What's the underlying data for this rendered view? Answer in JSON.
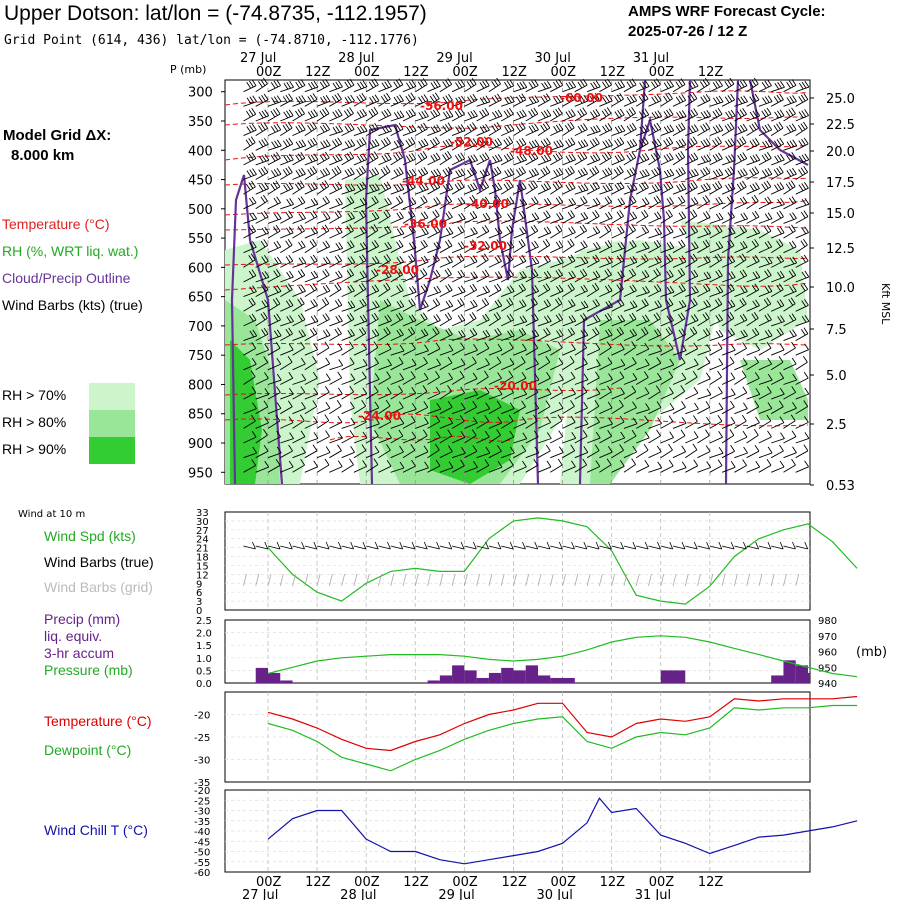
{
  "header": {
    "title": "Upper Dotson:  lat/lon = (-74.8735, -112.1957)",
    "subtitle": "Grid Point (614, 436) lat/lon = (-74.8710, -112.1776)",
    "cycle_line1": "AMPS WRF Forecast Cycle:",
    "cycle_line2": "2025-07-26 / 12  Z"
  },
  "side": {
    "model_grid_line1": "Model Grid ΔX:",
    "model_grid_line2": "8.000 km",
    "legend_temperature": "Temperature (°C)",
    "legend_rh": "RH (%, WRT liq. wat.)",
    "legend_cloud": "Cloud/Precip Outline",
    "legend_wind": "Wind Barbs (kts) (true)",
    "rh70": "RH > 70%",
    "rh80": "RH > 80%",
    "rh90": "RH > 90%",
    "rh_colors": [
      "#ccf5cc",
      "#99e699",
      "#33cc33"
    ]
  },
  "time_axis": {
    "top_day_labels": [
      "27 Jul",
      "28 Jul",
      "29 Jul",
      "30 Jul",
      "31 Jul"
    ],
    "bottom_day_labels": [
      "27 Jul",
      "28 Jul",
      "29 Jul",
      "30 Jul",
      "31 Jul"
    ],
    "hour_labels": [
      "00Z",
      "12Z",
      "00Z",
      "12Z",
      "00Z",
      "12Z",
      "00Z",
      "12Z",
      "00Z",
      "12Z"
    ]
  },
  "chart_data": [
    {
      "type": "heatmap",
      "panel": "sounding",
      "y_axis_title": "P (mb)",
      "right_axis_title": "Kft MSL",
      "pressure_ticks": [
        300,
        350,
        400,
        450,
        500,
        550,
        600,
        650,
        700,
        750,
        800,
        850,
        900,
        950
      ],
      "kft_ticks": [
        "25.0",
        "22.5",
        "20.0",
        "17.5",
        "15.0",
        "12.5",
        "10.0",
        "7.5",
        "5.0",
        "2.5",
        "0.53"
      ],
      "temperature_labels": [
        "-60.00",
        "-56.00",
        "-52.00",
        "-48.00",
        "-44.00",
        "-40.00",
        "-36.00",
        "-32.00",
        "-28.00",
        "-24.00",
        "-20.00"
      ],
      "colors": {
        "temperature": "#ee1111",
        "cloud": "#663399",
        "wind": "#000000"
      }
    },
    {
      "type": "line",
      "panel": "wind_10m",
      "panel_label": "Wind at 10 m",
      "series_label_speed": "Wind Spd (kts)",
      "series_label_barbs_true": "Wind Barbs (true)",
      "series_label_barbs_grid": "Wind Barbs (grid)",
      "y_ticks": [
        0,
        3,
        6,
        9,
        12,
        15,
        18,
        21,
        24,
        27,
        30,
        33
      ],
      "ylim": [
        0,
        33
      ],
      "x_hours": [
        0,
        6,
        12,
        18,
        24,
        30,
        36,
        42,
        48,
        54,
        60,
        66,
        72,
        78,
        84,
        90,
        96,
        102,
        108,
        114,
        120,
        126,
        132,
        138,
        144
      ],
      "wind_speed": [
        21,
        12,
        6,
        3,
        9,
        13,
        14,
        13,
        13,
        24,
        30,
        31,
        30,
        28,
        20,
        5,
        3,
        2,
        8,
        18,
        24,
        27,
        29,
        23,
        14
      ],
      "color": "#22bb22"
    },
    {
      "type": "bar",
      "panel": "precip_pressure",
      "series_label_precip": "Precip (mm)",
      "series_label_liq": "liq. equiv.",
      "series_label_accum": "3-hr accum",
      "series_label_pressure": "Pressure (mb)",
      "left_ticks": [
        "0.0",
        "0.5",
        "1.0",
        "1.5",
        "2.0",
        "2.5"
      ],
      "right_ticks": [
        "940",
        "950",
        "960",
        "970",
        "980"
      ],
      "right_unit": "(mb)",
      "ylim_precip": [
        0,
        2.5
      ],
      "ylim_pressure": [
        940,
        980
      ],
      "precip_x_hours": [
        0,
        3,
        6,
        9,
        12,
        15,
        18,
        21,
        24,
        27,
        30,
        33,
        36,
        39,
        42,
        45,
        48,
        51,
        54,
        57,
        60,
        63,
        66,
        69,
        72,
        75,
        78,
        81,
        84,
        87,
        90,
        93,
        96,
        99,
        102,
        105,
        108,
        111,
        114,
        117,
        120,
        123,
        126,
        129,
        132,
        135,
        138,
        141
      ],
      "precip": [
        0.6,
        0.4,
        0.1,
        0,
        0,
        0,
        0,
        0,
        0,
        0,
        0,
        0,
        0,
        0,
        0.1,
        0.3,
        0.7,
        0.5,
        0.2,
        0.4,
        0.6,
        0.5,
        0.7,
        0.3,
        0.2,
        0.2,
        0,
        0,
        0,
        0,
        0,
        0,
        0,
        0.5,
        0.5,
        0,
        0,
        0,
        0,
        0,
        0,
        0,
        0.3,
        0.9,
        0.7,
        0.4,
        0.3,
        0.2
      ],
      "pressure_x_hours": [
        0,
        6,
        12,
        18,
        24,
        30,
        36,
        42,
        48,
        54,
        60,
        66,
        72,
        78,
        84,
        90,
        96,
        102,
        108,
        114,
        120,
        126,
        132,
        138,
        144
      ],
      "pressure": [
        946,
        950,
        954,
        956,
        957,
        958,
        958,
        958,
        957,
        955,
        954,
        955,
        957,
        961,
        966,
        969,
        970,
        969,
        966,
        962,
        958,
        954,
        950,
        946,
        944
      ],
      "precip_color": "#662288",
      "pressure_color": "#22bb22"
    },
    {
      "type": "line",
      "panel": "temp_dewpoint",
      "series_label_temp": "Temperature (°C)",
      "series_label_dew": "Dewpoint (°C)",
      "y_ticks": [
        "-20",
        "-25",
        "-30",
        "-35"
      ],
      "ylim": [
        -35,
        -15
      ],
      "x_hours": [
        0,
        6,
        12,
        18,
        24,
        30,
        36,
        42,
        48,
        54,
        60,
        66,
        72,
        78,
        84,
        90,
        96,
        102,
        108,
        114,
        120,
        126,
        132,
        138,
        144
      ],
      "temperature": [
        -19.5,
        -21,
        -23,
        -25.5,
        -27.5,
        -28,
        -26,
        -24.5,
        -22,
        -20,
        -19,
        -17.5,
        -17.5,
        -24,
        -25,
        -22,
        -21,
        -21.5,
        -20.5,
        -16.5,
        -17,
        -16.5,
        -16.5,
        -16.5,
        -16
      ],
      "dewpoint": [
        -22,
        -23.5,
        -26,
        -29.5,
        -31,
        -32.5,
        -30,
        -28,
        -25.5,
        -23.5,
        -22,
        -21,
        -20.5,
        -26,
        -27.5,
        -25,
        -24,
        -24.5,
        -23,
        -18.5,
        -19,
        -18.5,
        -18.5,
        -18,
        -18
      ],
      "temp_color": "#dd0000",
      "dew_color": "#22bb22"
    },
    {
      "type": "line",
      "panel": "wind_chill",
      "series_label": "Wind Chill T (°C)",
      "y_ticks": [
        "-20",
        "-25",
        "-30",
        "-35",
        "-40",
        "-45",
        "-50",
        "-55",
        "-60"
      ],
      "ylim": [
        -60,
        -20
      ],
      "x_hours": [
        0,
        6,
        12,
        18,
        24,
        30,
        36,
        42,
        48,
        54,
        60,
        66,
        72,
        78,
        81,
        84,
        90,
        96,
        102,
        108,
        114,
        120,
        126,
        132,
        138,
        144
      ],
      "wind_chill": [
        -44,
        -34,
        -30,
        -30,
        -44,
        -50,
        -50,
        -54,
        -56,
        -54,
        -52,
        -50,
        -46,
        -36,
        -24,
        -31,
        -29,
        -42,
        -46,
        -51,
        -47,
        -43,
        -42,
        -40,
        -38,
        -35
      ],
      "color": "#1111aa"
    }
  ]
}
